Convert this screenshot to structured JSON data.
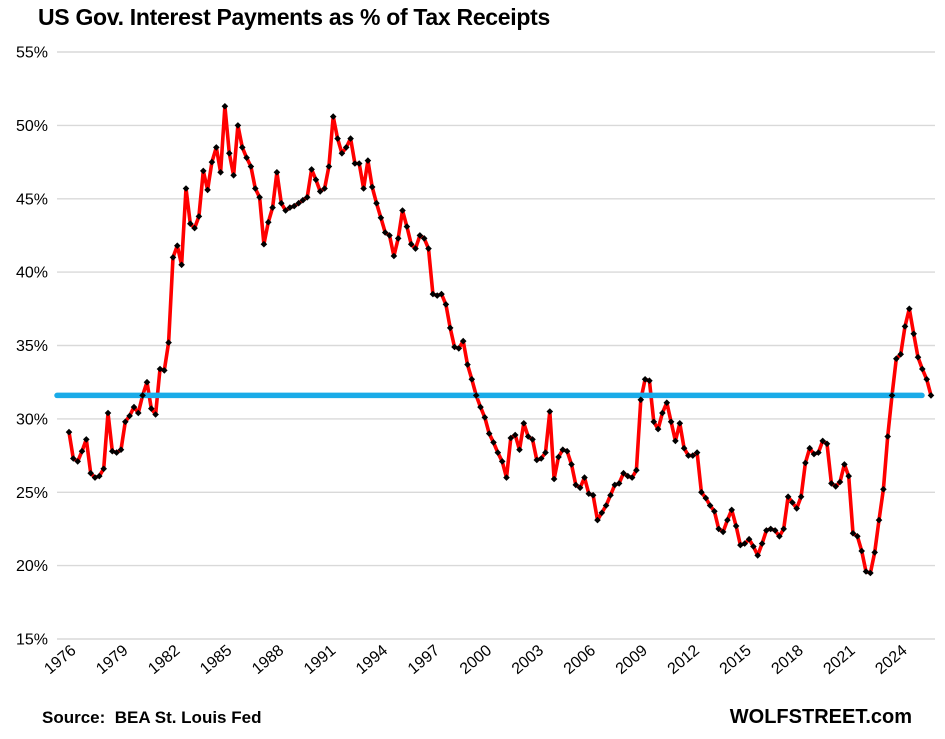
{
  "page": {
    "title": "US Gov. Interest Payments as % of Tax Receipts"
  },
  "footer": {
    "source_label": "Source:  BEA St. Louis Fed",
    "brand": "WOLFSTREET.com"
  },
  "chart_data": {
    "type": "line",
    "title": "US Gov. Interest Payments as % of Tax Receipts",
    "xlabel": "",
    "ylabel": "",
    "x_range": "1976 to 2025, quarterly",
    "x_start": "1976-Q1",
    "frequency": "quarterly",
    "ylim": [
      15,
      55
    ],
    "grid": "horizontal",
    "legend_position": "none",
    "grid_color": "#D9D9D9",
    "background": "#FFFFFF",
    "x_tick_labels": [
      "1976",
      "1979",
      "1982",
      "1985",
      "1988",
      "1991",
      "1994",
      "1997",
      "2000",
      "2003",
      "2006",
      "2009",
      "2012",
      "2015",
      "2018",
      "2021",
      "2024"
    ],
    "y_tick_values": [
      55,
      50,
      45,
      40,
      35,
      30,
      25,
      20,
      15
    ],
    "y_tick_labels": [
      "55%",
      "50%",
      "45%",
      "40%",
      "35%",
      "30%",
      "25%",
      "20%",
      "15%"
    ],
    "reference_line": {
      "value": 31.6,
      "color": "#1AABE8"
    },
    "series": [
      {
        "name": "Interest payments as % of tax receipts",
        "color": "#FF0000",
        "marker": "diamond",
        "marker_color": "#000000",
        "values": [
          29.1,
          27.3,
          27.1,
          27.8,
          28.6,
          26.3,
          26.0,
          26.1,
          26.6,
          30.4,
          27.8,
          27.7,
          27.9,
          29.8,
          30.2,
          30.8,
          30.4,
          31.6,
          32.5,
          30.7,
          30.3,
          33.4,
          33.3,
          35.2,
          41.0,
          41.8,
          40.5,
          45.7,
          43.3,
          43.0,
          43.8,
          46.9,
          45.6,
          47.5,
          48.5,
          46.8,
          51.3,
          48.1,
          46.6,
          50.0,
          48.5,
          47.8,
          47.2,
          45.7,
          45.1,
          41.9,
          43.4,
          44.4,
          46.8,
          44.7,
          44.2,
          44.4,
          44.5,
          44.7,
          44.9,
          45.1,
          47.0,
          46.3,
          45.5,
          45.7,
          47.2,
          50.6,
          49.1,
          48.1,
          48.5,
          49.1,
          47.4,
          47.4,
          45.7,
          47.6,
          45.8,
          44.7,
          43.7,
          42.7,
          42.5,
          41.1,
          42.3,
          44.2,
          43.1,
          41.9,
          41.6,
          42.5,
          42.3,
          41.6,
          38.5,
          38.4,
          38.5,
          37.8,
          36.2,
          34.9,
          34.8,
          35.3,
          33.7,
          32.7,
          31.6,
          30.8,
          30.1,
          29.0,
          28.4,
          27.7,
          27.1,
          26.0,
          28.7,
          28.9,
          27.9,
          29.7,
          28.8,
          28.6,
          27.2,
          27.3,
          27.7,
          30.5,
          25.9,
          27.4,
          27.9,
          27.8,
          26.9,
          25.5,
          25.3,
          26.0,
          24.9,
          24.8,
          23.1,
          23.6,
          24.1,
          24.8,
          25.5,
          25.6,
          26.3,
          26.1,
          26.0,
          26.5,
          31.3,
          32.7,
          32.6,
          29.8,
          29.3,
          30.4,
          31.1,
          29.8,
          28.5,
          29.7,
          28.0,
          27.5,
          27.5,
          27.7,
          25.0,
          24.6,
          24.1,
          23.7,
          22.5,
          22.3,
          23.1,
          23.8,
          22.7,
          21.4,
          21.5,
          21.8,
          21.3,
          20.7,
          21.5,
          22.4,
          22.5,
          22.4,
          22.0,
          22.5,
          24.7,
          24.3,
          23.9,
          24.7,
          27.0,
          28.0,
          27.6,
          27.7,
          28.5,
          28.3,
          25.6,
          25.4,
          25.7,
          26.9,
          26.1,
          22.2,
          22.0,
          21.0,
          19.6,
          19.5,
          20.9,
          23.1,
          25.2,
          28.8,
          31.6,
          34.1,
          34.4,
          36.3,
          37.5,
          35.8,
          34.2,
          33.4,
          32.7,
          31.6
        ]
      }
    ]
  }
}
